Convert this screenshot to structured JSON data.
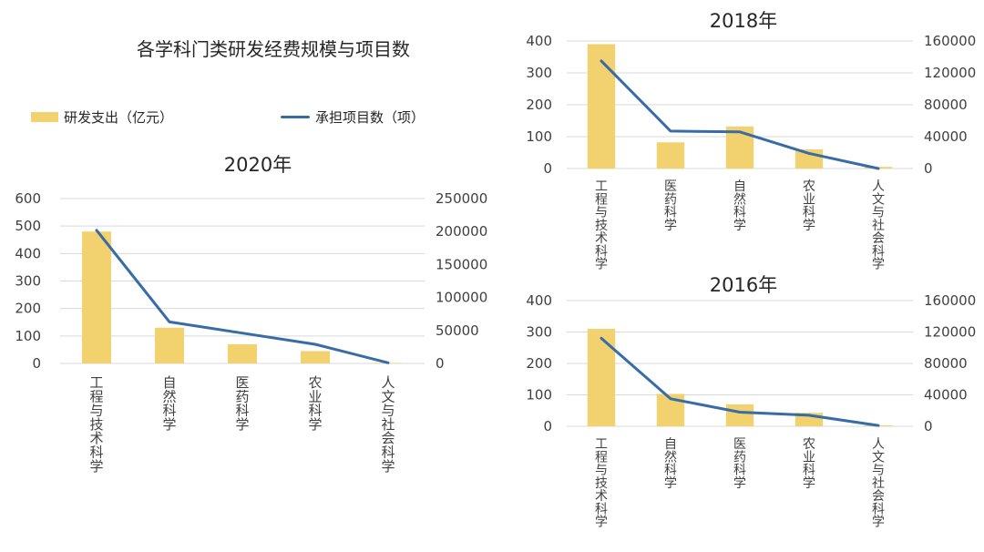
{
  "main_title": "各学科门类研发经费规模与项目数",
  "legend": {
    "bar_label": "研发支出（亿元）",
    "line_label": "承担项目数（项）",
    "bar_color": "#F2D16F",
    "line_color": "#386CA6"
  },
  "chart_data": [
    {
      "type": "bar+line",
      "title": "2020年",
      "categories": [
        "工程与技术科学",
        "自然科学",
        "医药科学",
        "农业科学",
        "人文与社会科学"
      ],
      "series": [
        {
          "name": "研发支出（亿元）",
          "type": "bar",
          "axis": "left",
          "values": [
            480,
            130,
            70,
            45,
            2
          ]
        },
        {
          "name": "承担项目数（项）",
          "type": "line",
          "axis": "right",
          "values": [
            202000,
            63000,
            46000,
            29000,
            1000
          ]
        }
      ],
      "y_left": {
        "min": 0,
        "max": 600,
        "ticks": [
          "0",
          "100",
          "200",
          "300",
          "400",
          "500",
          "600"
        ]
      },
      "y_right": {
        "min": 0,
        "max": 250000,
        "ticks": [
          "0",
          "50000",
          "100000",
          "150000",
          "200000",
          "250000"
        ]
      },
      "grid": true
    },
    {
      "type": "bar+line",
      "title": "2018年",
      "categories": [
        "工程与技术科学",
        "医药科学",
        "自然科学",
        "农业科学",
        "人文与社会科学"
      ],
      "series": [
        {
          "name": "研发支出（亿元）",
          "type": "bar",
          "axis": "left",
          "values": [
            390,
            82,
            132,
            60,
            5
          ]
        },
        {
          "name": "承担项目数（项）",
          "type": "line",
          "axis": "right",
          "values": [
            135000,
            47000,
            46000,
            19000,
            0
          ]
        }
      ],
      "y_left": {
        "min": 0,
        "max": 400,
        "ticks": [
          "0",
          "100",
          "200",
          "300",
          "400"
        ]
      },
      "y_right": {
        "min": 0,
        "max": 160000,
        "ticks": [
          "0",
          "40000",
          "80000",
          "120000",
          "160000"
        ]
      },
      "grid": true
    },
    {
      "type": "bar+line",
      "title": "2016年",
      "categories": [
        "工程与技术科学",
        "自然科学",
        "医药科学",
        "农业科学",
        "人文与社会科学"
      ],
      "series": [
        {
          "name": "研发支出（亿元）",
          "type": "bar",
          "axis": "left",
          "values": [
            310,
            103,
            70,
            43,
            3
          ]
        },
        {
          "name": "承担项目数（项）",
          "type": "line",
          "axis": "right",
          "values": [
            112000,
            35000,
            18000,
            14000,
            1000
          ]
        }
      ],
      "y_left": {
        "min": 0,
        "max": 400,
        "ticks": [
          "0",
          "100",
          "200",
          "300",
          "400"
        ]
      },
      "y_right": {
        "min": 0,
        "max": 160000,
        "ticks": [
          "0",
          "40000",
          "80000",
          "120000",
          "160000"
        ]
      },
      "grid": true
    }
  ]
}
